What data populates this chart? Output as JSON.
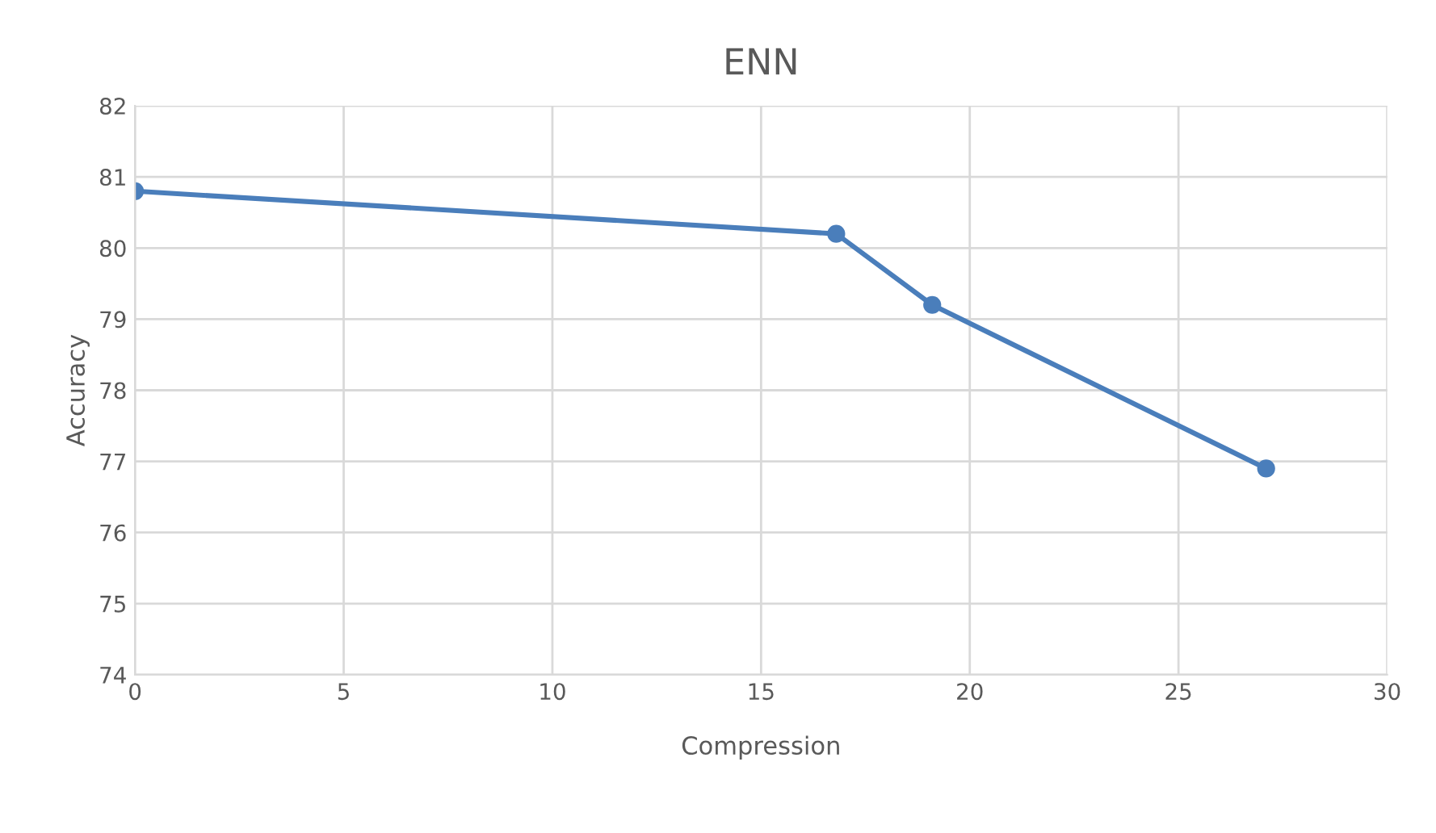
{
  "chart_data": {
    "type": "line",
    "title": "ENN",
    "xlabel": "Compression",
    "ylabel": "Accuracy",
    "x": [
      0,
      16.8,
      19.1,
      27.1
    ],
    "series": [
      {
        "color": "#4a7ebb",
        "values": [
          80.8,
          80.2,
          79.2,
          76.9
        ]
      }
    ],
    "xlim": [
      0,
      30
    ],
    "xticks": [
      0,
      5,
      10,
      15,
      20,
      25,
      30
    ],
    "ylim": [
      74,
      82
    ],
    "yticks": [
      74,
      75,
      76,
      77,
      78,
      79,
      80,
      81,
      82
    ],
    "grid": true,
    "marker": "circle",
    "line_style": "solid"
  }
}
